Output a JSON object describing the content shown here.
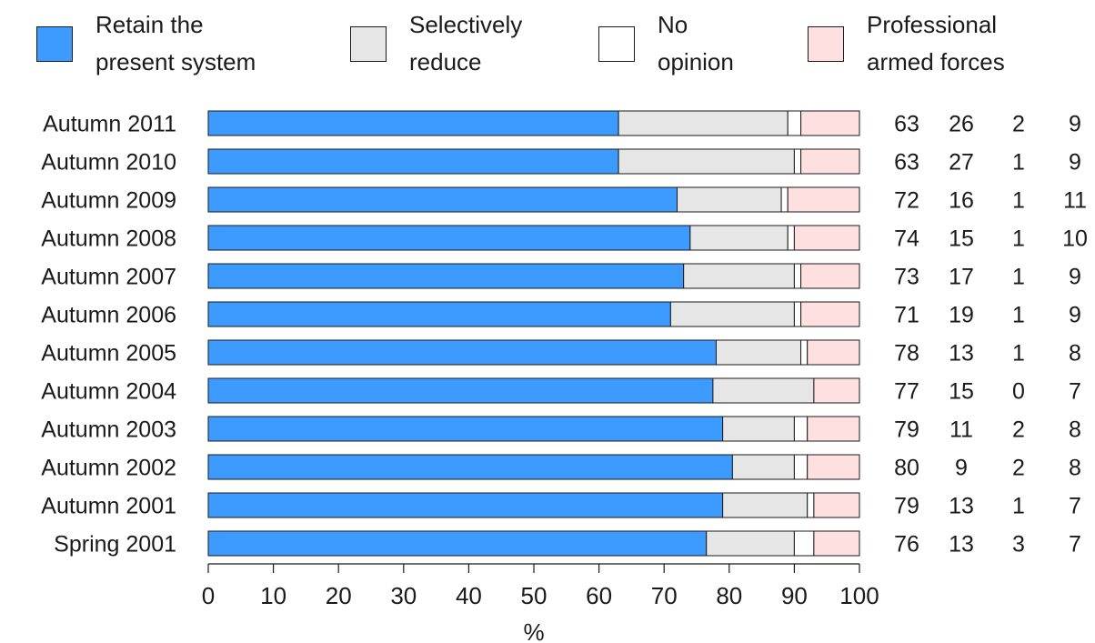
{
  "chart_data": {
    "type": "bar",
    "orientation": "horizontal",
    "stacked": true,
    "categories": [
      "Autumn 2011",
      "Autumn 2010",
      "Autumn 2009",
      "Autumn 2008",
      "Autumn 2007",
      "Autumn 2006",
      "Autumn 2005",
      "Autumn 2004",
      "Autumn 2003",
      "Autumn 2002",
      "Autumn 2001",
      "Spring 2001"
    ],
    "series": [
      {
        "name": "Retain the present system",
        "legend_lines": [
          "Retain the",
          "present system"
        ],
        "color": "#3d9bff",
        "values": [
          63,
          63,
          72,
          74,
          73,
          71,
          78,
          77,
          79,
          80,
          79,
          76
        ],
        "segments": [
          63,
          63,
          72,
          74,
          73,
          71,
          78,
          77.5,
          79,
          80.5,
          79,
          76.5
        ]
      },
      {
        "name": "Selectively reduce",
        "legend_lines": [
          "Selectively",
          "reduce"
        ],
        "color": "#e6e6e6",
        "values": [
          26,
          27,
          16,
          15,
          17,
          19,
          13,
          15,
          11,
          9,
          13,
          13
        ],
        "segments": [
          26,
          27,
          16,
          15,
          17,
          19,
          13,
          15.5,
          11,
          9.5,
          13,
          13.5
        ]
      },
      {
        "name": "No opinion",
        "legend_lines": [
          "No",
          "opinion"
        ],
        "color": "#ffffff",
        "values": [
          2,
          1,
          1,
          1,
          1,
          1,
          1,
          0,
          2,
          2,
          1,
          3
        ],
        "segments": [
          2,
          1,
          1,
          1,
          1,
          1,
          1,
          0,
          2,
          2,
          1,
          3
        ]
      },
      {
        "name": "Professional armed forces",
        "legend_lines": [
          "Professional",
          "armed forces"
        ],
        "color": "#ffe0e0",
        "values": [
          9,
          9,
          11,
          10,
          9,
          9,
          8,
          7,
          8,
          8,
          7,
          7
        ],
        "segments": [
          9,
          9,
          11,
          10,
          9,
          9,
          8,
          7,
          8,
          8,
          7,
          7
        ]
      }
    ],
    "xlim": [
      0,
      100
    ],
    "x_ticks": [
      0,
      10,
      20,
      30,
      40,
      50,
      60,
      70,
      80,
      90,
      100
    ],
    "xlabel": "%",
    "ylabel": "",
    "title": "",
    "grid": false,
    "legend_position": "top"
  }
}
